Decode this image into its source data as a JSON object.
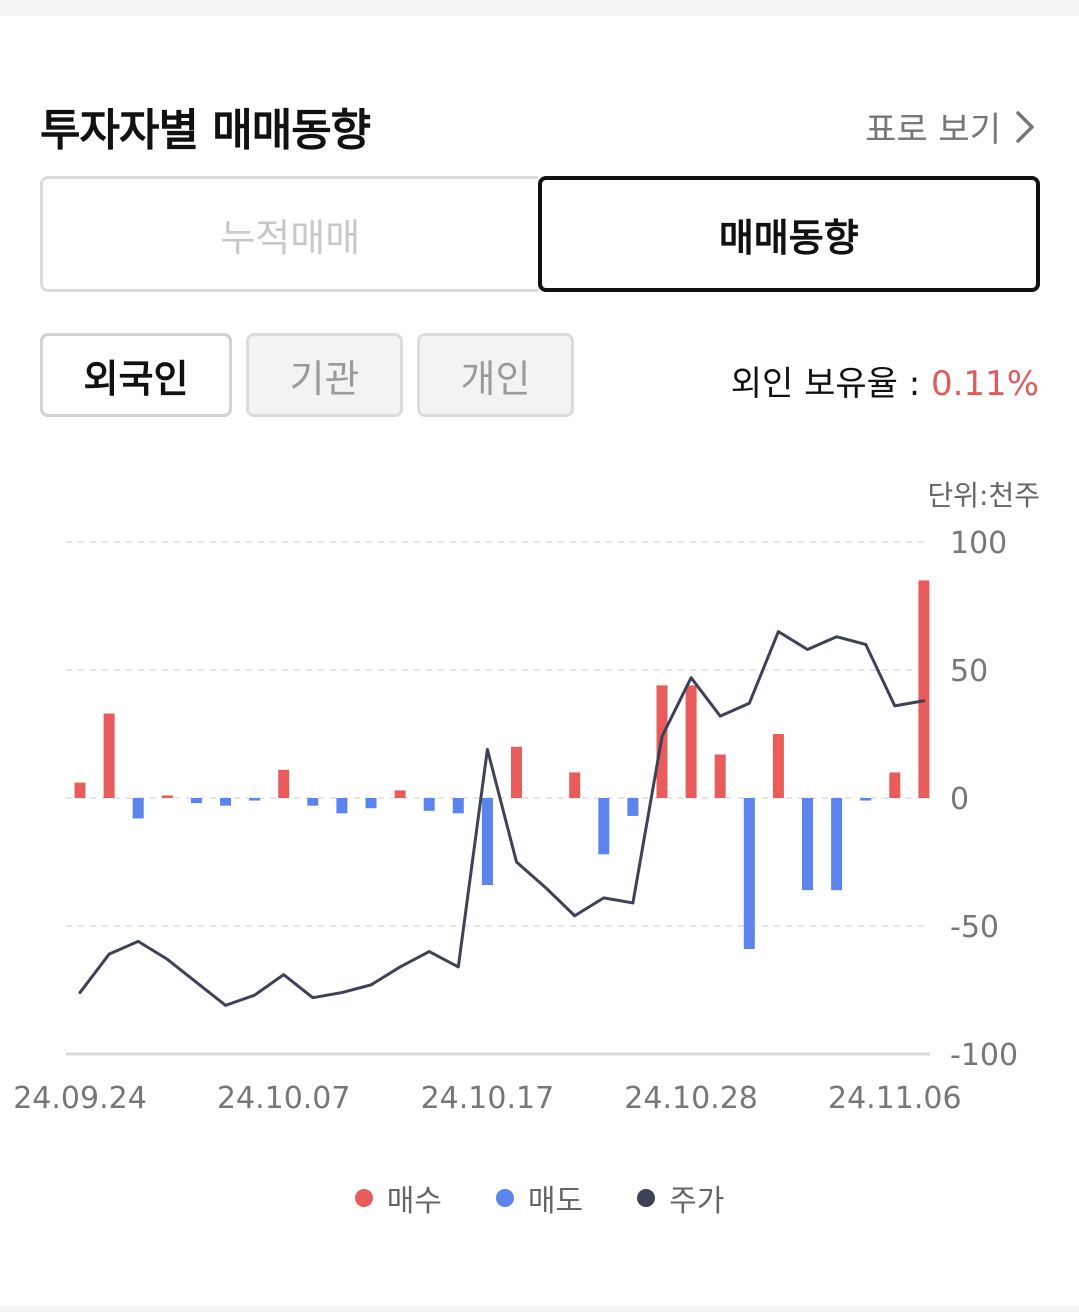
{
  "header": {
    "title": "투자자별 매매동향",
    "table_link": "표로 보기"
  },
  "segments": [
    {
      "label": "누적매매",
      "active": false
    },
    {
      "label": "매매동향",
      "active": true
    }
  ],
  "investor_tabs": [
    {
      "label": "외국인",
      "active": true
    },
    {
      "label": "기관",
      "active": false
    },
    {
      "label": "개인",
      "active": false
    }
  ],
  "holding": {
    "label": "외인 보유율 : ",
    "value": "0.11%"
  },
  "colors": {
    "buy": "#e85c5c",
    "sell": "#5b84ec",
    "price": "#3d4256",
    "accent_red": "#e05c5c"
  },
  "chart_data": {
    "type": "bar",
    "unit": "단위:천주",
    "y_ticks": [
      "100",
      "50",
      "0",
      "-50",
      "-100"
    ],
    "ylim": [
      -100,
      100
    ],
    "x_tick_labels": [
      "24.09.24",
      "24.10.07",
      "24.10.17",
      "24.10.28",
      "24.11.06"
    ],
    "x_tick_indices": [
      0,
      7,
      14,
      21,
      28
    ],
    "series": [
      {
        "name": "매수",
        "kind": "bar",
        "color": "#e85c5c"
      },
      {
        "name": "매도",
        "kind": "bar",
        "color": "#5b84ec"
      },
      {
        "name": "주가",
        "kind": "line",
        "color": "#3d4256"
      }
    ],
    "net_volume": [
      6,
      33,
      -8,
      1,
      -2,
      -3,
      -1,
      11,
      -3,
      -6,
      -4,
      3,
      -5,
      -6,
      -34,
      20,
      0,
      10,
      -22,
      -7,
      44,
      44,
      17,
      -59,
      25,
      -36,
      -36,
      -1,
      10,
      85
    ],
    "price_relative": [
      -76,
      -61,
      -56,
      -63,
      -72,
      -81,
      -77,
      -69,
      -78,
      -76,
      -73,
      -66,
      -60,
      -66,
      19,
      -25,
      -35,
      -46,
      -39,
      -41,
      24,
      47,
      32,
      37,
      65,
      58,
      63,
      60,
      36,
      38
    ]
  }
}
